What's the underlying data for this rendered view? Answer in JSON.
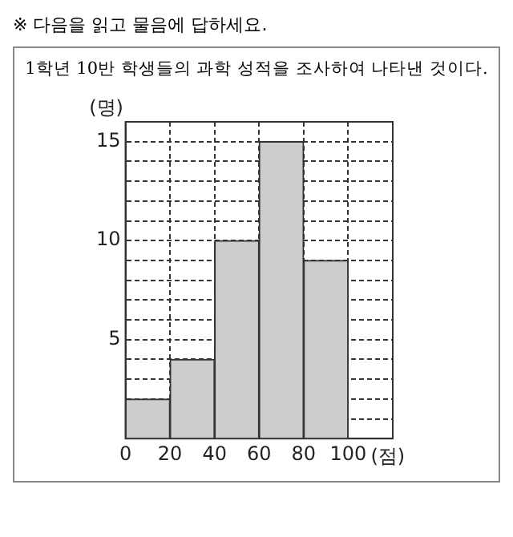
{
  "chart_data": {
    "type": "histogram",
    "subtitle": "※ 다음을 읽고 물음에 답하세요.",
    "title": "1학년 10반 학생들의 과학 성적을 조사하여 나타낸 것이다.",
    "ylabel": "(명)",
    "xlabel": "(점)",
    "bins": [
      0,
      20,
      40,
      60,
      80,
      100
    ],
    "values": [
      2,
      4,
      10,
      15,
      9
    ],
    "color": "#cccccc",
    "xlim": [
      0,
      120
    ],
    "xticks": [
      0,
      20,
      40,
      60,
      80,
      100,
      {
        "value": 120,
        "label": null
      }
    ],
    "ylim": [
      0,
      16
    ],
    "yticks": [
      {
        "value": 1,
        "label": null
      },
      {
        "value": 2,
        "label": null
      },
      {
        "value": 3,
        "label": null
      },
      {
        "value": 4,
        "label": null
      },
      5,
      {
        "value": 6,
        "label": null
      },
      {
        "value": 7,
        "label": null
      },
      {
        "value": 8,
        "label": null
      },
      {
        "value": 9,
        "label": null
      },
      10,
      {
        "value": 11,
        "label": null
      },
      {
        "value": 12,
        "label": null
      },
      {
        "value": 13,
        "label": null
      },
      {
        "value": 14,
        "label": null
      },
      15,
      {
        "value": 16,
        "label": null
      }
    ],
    "grid": true,
    "line_style": "dashed",
    "legend": false
  }
}
